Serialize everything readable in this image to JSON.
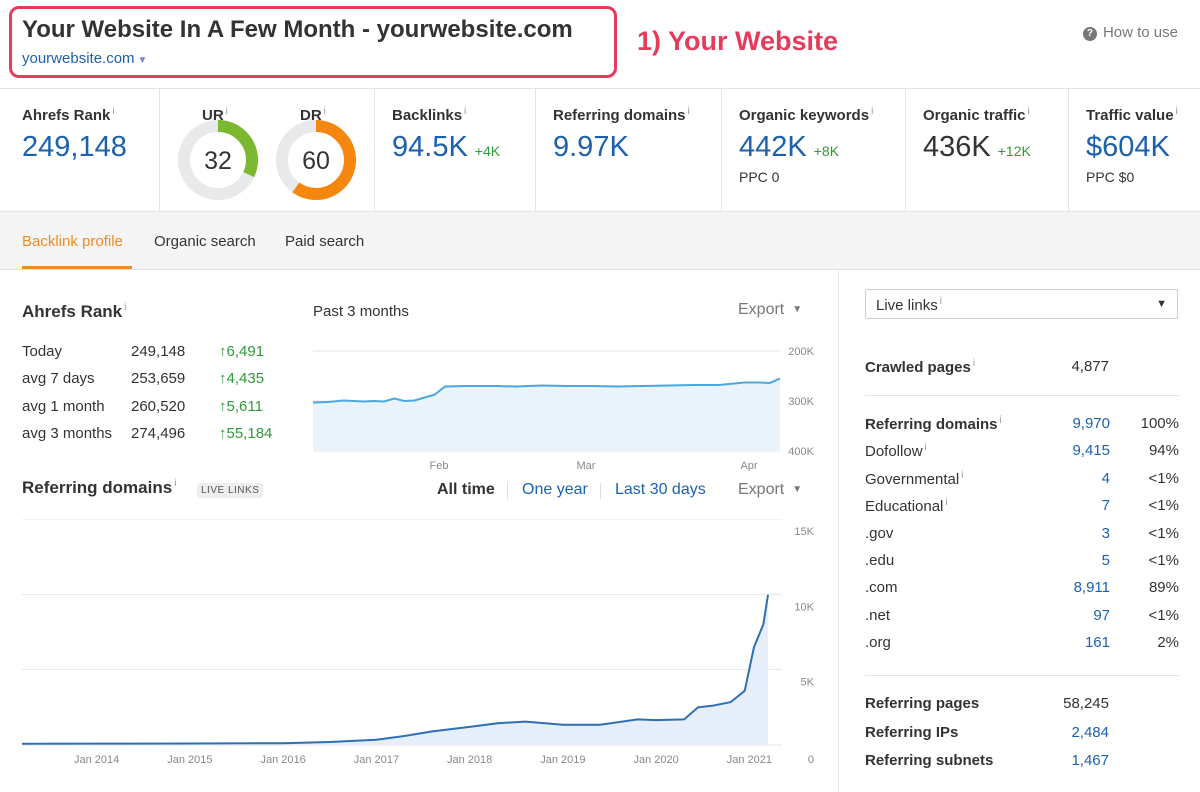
{
  "header": {
    "site_title": "Your Website In A Few Month - yourwebsite.com",
    "site_url": "yourwebsite.com",
    "annotation": "1) Your Website",
    "how_to_use": "How to use"
  },
  "metrics": {
    "ahrefs_rank": {
      "label": "Ahrefs Rank",
      "value": "249,148"
    },
    "ur": {
      "label": "UR",
      "value": "32",
      "fraction": 0.32,
      "color": "#7cb82f"
    },
    "dr": {
      "label": "DR",
      "value": "60",
      "fraction": 0.6,
      "color": "#f5870f"
    },
    "backlinks": {
      "label": "Backlinks",
      "value": "94.5K",
      "delta": "+4K"
    },
    "referring_domains": {
      "label": "Referring domains",
      "value": "9.97K"
    },
    "organic_keywords": {
      "label": "Organic keywords",
      "value": "442K",
      "delta": "+8K",
      "sub": "PPC 0"
    },
    "organic_traffic": {
      "label": "Organic traffic",
      "value": "436K",
      "delta": "+12K"
    },
    "traffic_value": {
      "label": "Traffic value",
      "value": "$604K",
      "sub": "PPC $0"
    }
  },
  "tabs": [
    {
      "label": "Backlink profile",
      "active": true
    },
    {
      "label": "Organic search",
      "active": false
    },
    {
      "label": "Paid search",
      "active": false
    }
  ],
  "ahrefs_rank_section": {
    "title": "Ahrefs Rank",
    "period": "Past 3 months",
    "export": "Export",
    "rows": [
      {
        "label": "Today",
        "value": "249,148",
        "change": "6,491"
      },
      {
        "label": "avg 7 days",
        "value": "253,659",
        "change": "4,435"
      },
      {
        "label": "avg 1 month",
        "value": "260,520",
        "change": "5,611"
      },
      {
        "label": "avg 3 months",
        "value": "274,496",
        "change": "55,184"
      }
    ]
  },
  "referring_domains_section": {
    "title": "Referring domains",
    "badge": "LIVE LINKS",
    "time_options": [
      "All time",
      "One year",
      "Last 30 days"
    ],
    "export": "Export"
  },
  "chart_data": [
    {
      "type": "area",
      "title": "Ahrefs Rank",
      "ylabel": "",
      "y_reversed": true,
      "ylim": [
        400000,
        200000
      ],
      "y_ticks": [
        "200K",
        "300K",
        "400K"
      ],
      "x_ticks": [
        "Feb",
        "Mar",
        "Apr"
      ],
      "x": [
        0,
        3,
        6,
        10,
        12,
        14,
        16,
        18,
        20,
        22,
        24,
        26,
        30,
        36,
        40,
        45,
        50,
        55,
        60,
        65,
        70,
        75,
        80,
        85,
        88,
        90,
        92
      ],
      "values": [
        303000,
        302000,
        299000,
        301000,
        300000,
        301000,
        295000,
        300000,
        299000,
        293000,
        287000,
        271000,
        270000,
        270000,
        271000,
        269000,
        270000,
        270000,
        271000,
        270000,
        269000,
        268000,
        268000,
        263000,
        263000,
        264000,
        255000
      ],
      "color": "#4aa8dc"
    },
    {
      "type": "area",
      "title": "Referring domains",
      "ylim": [
        0,
        15000
      ],
      "y_ticks": [
        "0",
        "5K",
        "10K",
        "15K"
      ],
      "x_ticks": [
        "Jan 2014",
        "Jan 2015",
        "Jan 2016",
        "Jan 2017",
        "Jan 2018",
        "Jan 2019",
        "Jan 2020",
        "Jan 2021"
      ],
      "x": [
        2013.2,
        2014,
        2015,
        2016,
        2016.5,
        2017,
        2017.3,
        2017.6,
        2018,
        2018.3,
        2018.6,
        2019,
        2019.4,
        2019.8,
        2020,
        2020.3,
        2020.45,
        2020.6,
        2020.8,
        2020.95,
        2021.05,
        2021.15,
        2021.2
      ],
      "values": [
        80,
        90,
        100,
        120,
        200,
        350,
        600,
        900,
        1200,
        1450,
        1550,
        1350,
        1350,
        1700,
        1650,
        1700,
        2500,
        2600,
        2850,
        3600,
        6500,
        8000,
        9970
      ],
      "color": "#2f6fb3"
    }
  ],
  "sidebar": {
    "select_label": "Live links",
    "crawled_pages": {
      "label": "Crawled pages",
      "value": "4,877"
    },
    "rows": [
      {
        "label": "Referring domains",
        "value": "9,970",
        "pct": "100%",
        "bold": true,
        "link": true,
        "info": true
      },
      {
        "label": "Dofollow",
        "value": "9,415",
        "pct": "94%",
        "bold": false,
        "link": true,
        "info": true
      },
      {
        "label": "Governmental",
        "value": "4",
        "pct": "<1%",
        "bold": false,
        "link": true,
        "info": true
      },
      {
        "label": "Educational",
        "value": "7",
        "pct": "<1%",
        "bold": false,
        "link": true,
        "info": true
      },
      {
        "label": ".gov",
        "value": "3",
        "pct": "<1%",
        "bold": false,
        "link": true,
        "info": false
      },
      {
        "label": ".edu",
        "value": "5",
        "pct": "<1%",
        "bold": false,
        "link": true,
        "info": false
      },
      {
        "label": ".com",
        "value": "8,911",
        "pct": "89%",
        "bold": false,
        "link": true,
        "info": false
      },
      {
        "label": ".net",
        "value": "97",
        "pct": "<1%",
        "bold": false,
        "link": true,
        "info": false
      },
      {
        "label": ".org",
        "value": "161",
        "pct": "2%",
        "bold": false,
        "link": true,
        "info": false
      }
    ],
    "bottom_rows": [
      {
        "label": "Referring pages",
        "value": "58,245",
        "link": false
      },
      {
        "label": "Referring IPs",
        "value": "2,484",
        "link": true
      },
      {
        "label": "Referring subnets",
        "value": "1,467",
        "link": true
      }
    ]
  }
}
